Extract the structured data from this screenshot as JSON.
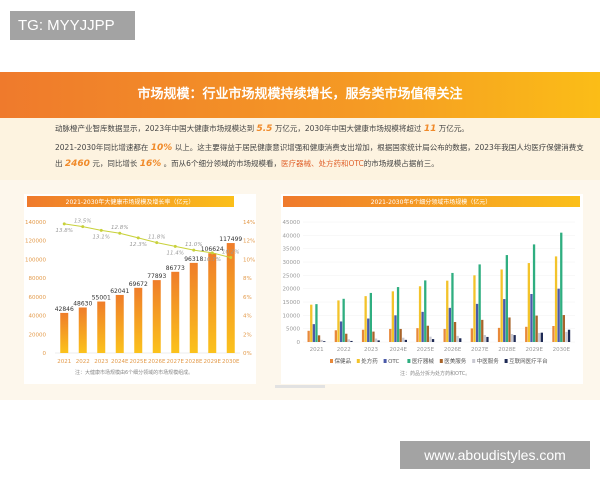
{
  "watermarks": {
    "top_left": "TG: MYYJJPP",
    "bottom_right": "www.aboudistyles.com"
  },
  "banner": {
    "title": "市场规模：行业市场规模持续增长，服务类市场值得关注"
  },
  "intro": {
    "l1a": "动脉橙产业智库数据显示，2023年中国大健康市场规模达到",
    "v1": "5.5",
    "l1b": "万亿元，2030年中国大健康市场规模将超过",
    "v2": "11",
    "l1c": "万亿元。",
    "l2a": "2021-2030年同比增速都在",
    "v3": "10%",
    "l2b": "以上。这主要得益于居民健康意识增强和健康消费支出增加，根据国家统计局公布的数据，2023年我国人均医疗保健消费支",
    "l3a": "出",
    "v4": "2460",
    "l3b": "元，同比增长",
    "v5": "16%",
    "l3c": "。而从6个细分领域的市场规模看，",
    "l3d": "医疗器械、处方药和OTC",
    "l3e": "的市场规模占据前三。"
  },
  "colors": {
    "accent": "#f08a2a",
    "bar_top": "#ef7d2a",
    "bar_bottom": "#fbc21c",
    "line": "#c8d13a"
  },
  "chart_data": [
    {
      "type": "bar",
      "title": "2021-2030年大健康市场规模及增长率（亿元）",
      "categories": [
        "2021",
        "2022",
        "2023",
        "2024E",
        "2025E",
        "2026E",
        "2027E",
        "2028E",
        "2029E",
        "2030E"
      ],
      "values": [
        42846,
        48630,
        55001,
        62041,
        69672,
        77893,
        86773,
        96318,
        106624,
        117499
      ],
      "ylim": [
        0,
        140000
      ],
      "yticks": [
        "0",
        "20000",
        "40000",
        "60000",
        "80000",
        "100000",
        "120000",
        "140000"
      ],
      "secondary": {
        "type": "line",
        "values": [
          13.8,
          13.5,
          13.1,
          12.8,
          12.3,
          11.8,
          11.4,
          11.0,
          10.7,
          10.2
        ],
        "labels": [
          "13.8%",
          "13.5%",
          "13.1%",
          "12.8%",
          "12.3%",
          "11.8%",
          "11.4%",
          "11.0%",
          "10.7%",
          "10.2%"
        ],
        "ylim": [
          0,
          14
        ],
        "yticks": [
          "0%",
          "2%",
          "4%",
          "6%",
          "8%",
          "10%",
          "12%",
          "14%"
        ]
      },
      "note": "注：大健康市场规模由6个细分领域的市场规模组成。"
    },
    {
      "type": "bar",
      "title": "2021-2030年6个细分领域市场规模（亿元）",
      "categories": [
        "2021",
        "2022",
        "2023",
        "2024E",
        "2025E",
        "2026E",
        "2027E",
        "2028E",
        "2029E",
        "2030E"
      ],
      "ylim": [
        0,
        45000
      ],
      "yticks": [
        "0",
        "5000",
        "10000",
        "15000",
        "20000",
        "25000",
        "30000",
        "35000",
        "40000",
        "45000"
      ],
      "legend_placement": "bottom",
      "series": [
        {
          "name": "保健品",
          "color": "#e8893a",
          "values": [
            4200,
            4400,
            4600,
            4900,
            5200,
            4900,
            5100,
            5300,
            5700,
            6000
          ]
        },
        {
          "name": "处方药",
          "color": "#f3c32a",
          "values": [
            14000,
            15600,
            17200,
            19000,
            20900,
            23000,
            25000,
            27200,
            29600,
            32100
          ]
        },
        {
          "name": "OTC",
          "color": "#4a5aa8",
          "values": [
            6700,
            7700,
            8800,
            10000,
            11300,
            12800,
            14300,
            16100,
            18000,
            20000
          ]
        },
        {
          "name": "医疗器械",
          "color": "#2fae80",
          "values": [
            14200,
            16200,
            18400,
            20600,
            23100,
            25900,
            29100,
            32600,
            36600,
            41000
          ]
        },
        {
          "name": "医美服务",
          "color": "#a8642a",
          "values": [
            2500,
            3100,
            3900,
            4900,
            6100,
            7500,
            8300,
            9200,
            9900,
            10100
          ]
        },
        {
          "name": "中医服务",
          "color": "#c9c9d2",
          "values": [
            800,
            1000,
            1300,
            1600,
            2000,
            2300,
            2600,
            3000,
            3400,
            3800
          ]
        },
        {
          "name": "互联网医疗平台",
          "color": "#1e2a55",
          "values": [
            300,
            400,
            600,
            800,
            1100,
            1400,
            1900,
            2600,
            3500,
            4600
          ]
        }
      ],
      "note": "注：药品分拆为处方药和OTC。"
    }
  ]
}
